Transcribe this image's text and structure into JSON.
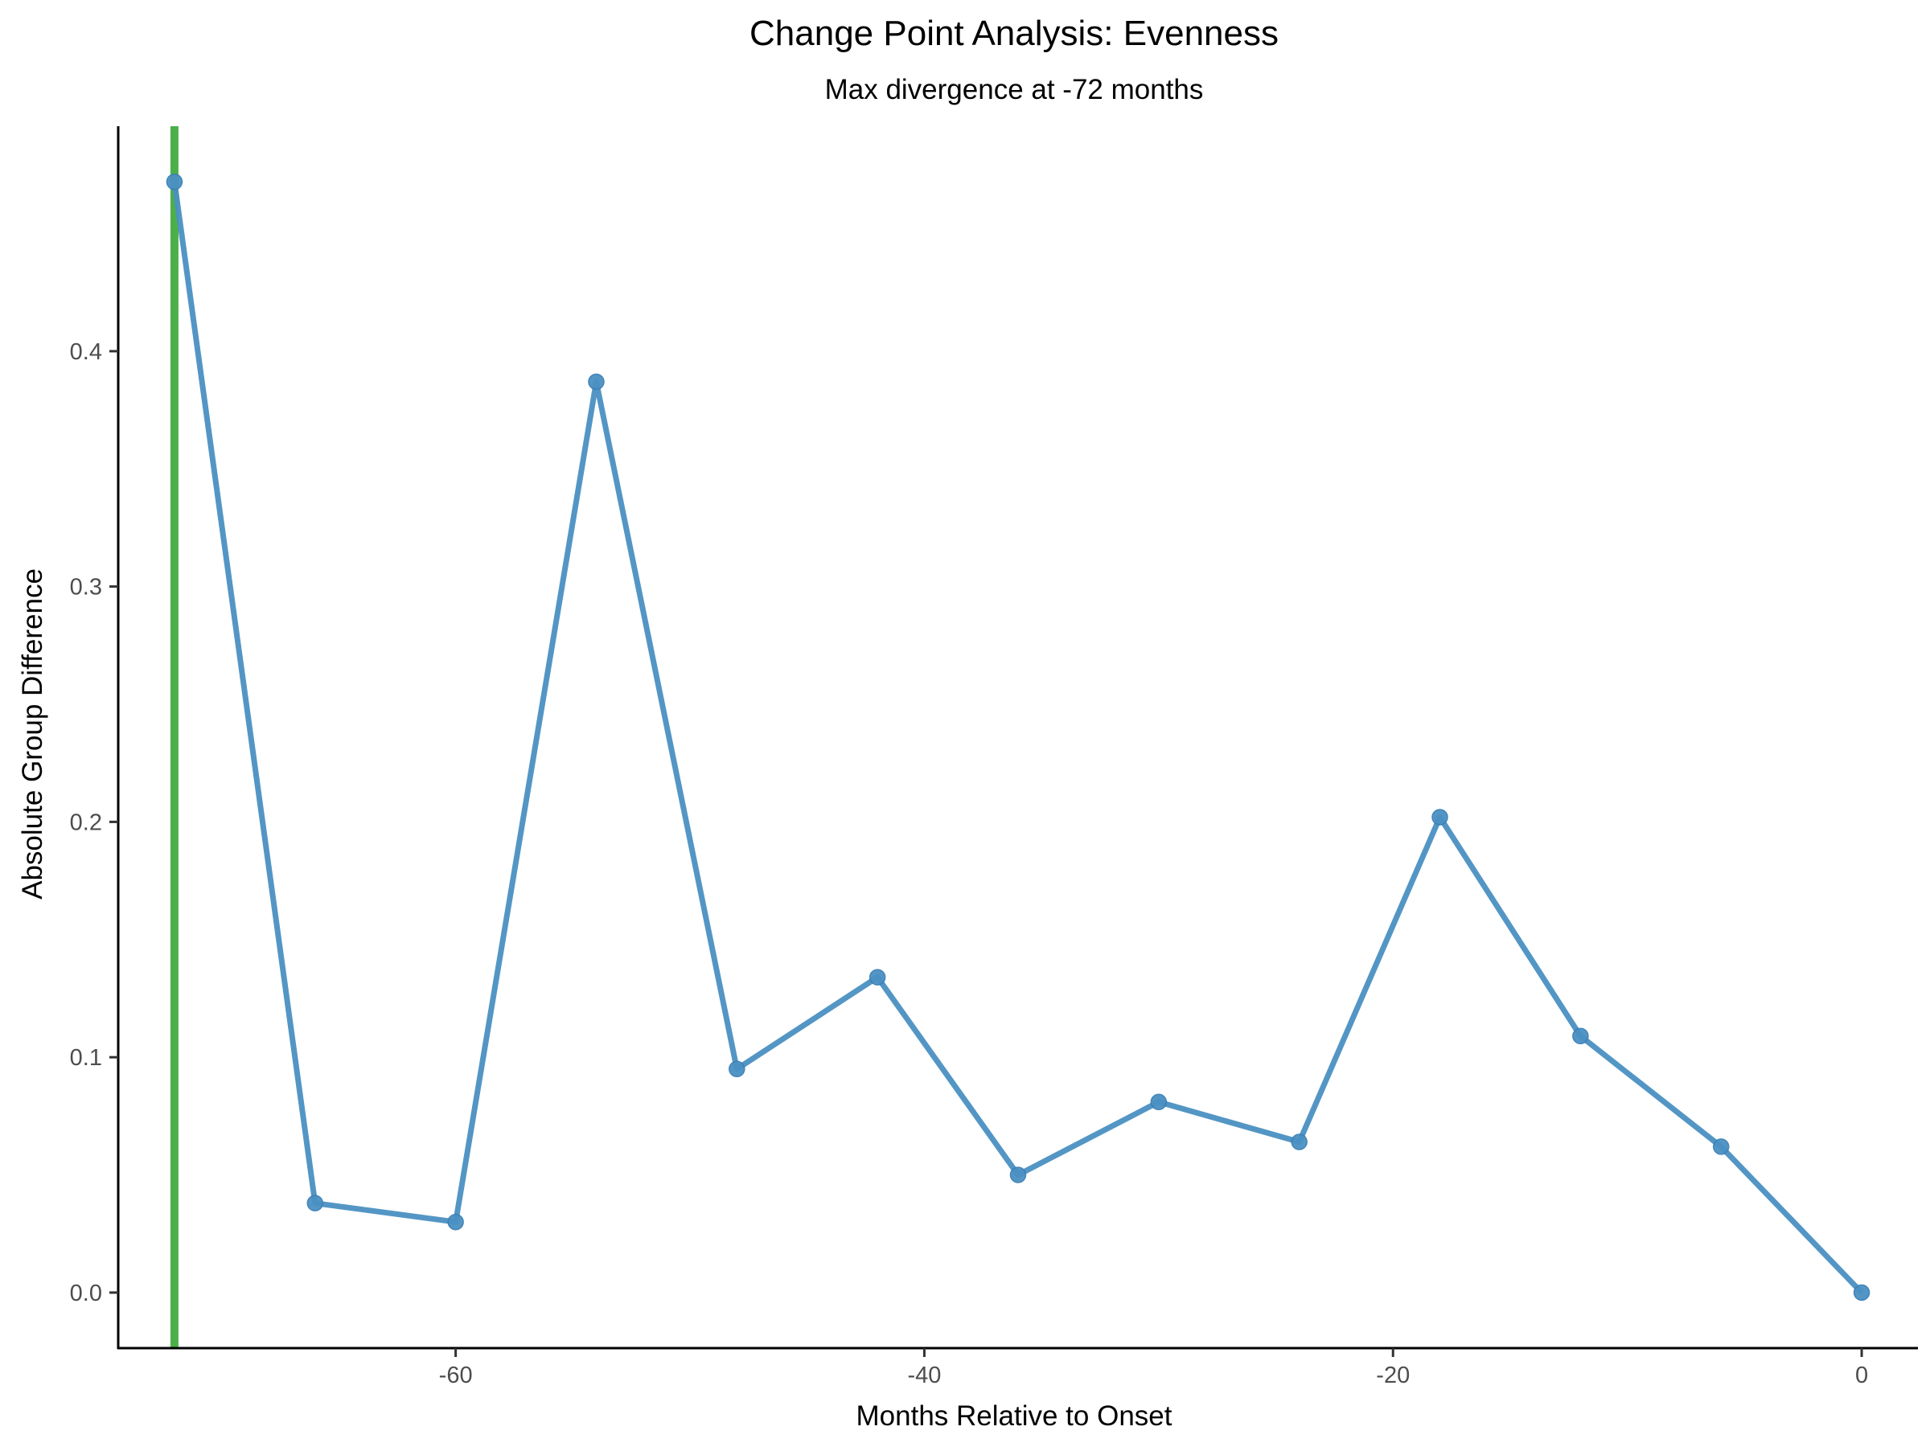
{
  "chart_data": {
    "type": "line",
    "title": "Change Point Analysis: Evenness",
    "subtitle": "Max divergence at -72 months",
    "xlabel": "Months Relative to Onset",
    "ylabel": "Absolute Group Difference",
    "xlim": [
      -74.4,
      2.4
    ],
    "ylim": [
      -0.0236,
      0.4956
    ],
    "xticks": [
      -60,
      -40,
      -20,
      0
    ],
    "xtick_labels": [
      "-60",
      "-40",
      "-20",
      "0"
    ],
    "yticks": [
      0.0,
      0.1,
      0.2,
      0.3,
      0.4
    ],
    "ytick_labels": [
      "0.0",
      "0.1",
      "0.2",
      "0.3",
      "0.4"
    ],
    "grid": false,
    "legend": "none",
    "series": [
      {
        "color": "#4a90c2",
        "x": [
          -72,
          -66,
          -60,
          -54,
          -48,
          -42,
          -36,
          -30,
          -24,
          -18,
          -12,
          -6,
          0
        ],
        "y": [
          0.472,
          0.038,
          0.03,
          0.387,
          0.095,
          0.134,
          0.05,
          0.081,
          0.064,
          0.202,
          0.109,
          0.062,
          0.0
        ]
      }
    ],
    "vline": {
      "x": -72,
      "color": "#4daf4a"
    }
  }
}
